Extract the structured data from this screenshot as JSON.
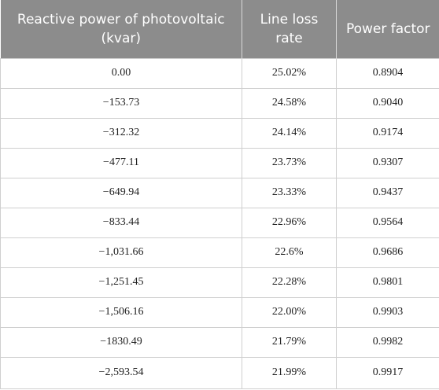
{
  "table": {
    "headers": [
      "Reactive power of photovoltaic (kvar)",
      "Line loss rate",
      "Power factor"
    ],
    "rows": [
      [
        "0.00",
        "25.02%",
        "0.8904"
      ],
      [
        "−153.73",
        "24.58%",
        "0.9040"
      ],
      [
        "−312.32",
        "24.14%",
        "0.9174"
      ],
      [
        "−477.11",
        "23.73%",
        "0.9307"
      ],
      [
        "−649.94",
        "23.33%",
        "0.9437"
      ],
      [
        "−833.44",
        "22.96%",
        "0.9564"
      ],
      [
        "−1,031.66",
        "22.6%",
        "0.9686"
      ],
      [
        "−1,251.45",
        "22.28%",
        "0.9801"
      ],
      [
        "−1,506.16",
        "22.00%",
        "0.9903"
      ],
      [
        "−1830.49",
        "21.79%",
        "0.9982"
      ],
      [
        "−2,593.54",
        "21.99%",
        "0.9917"
      ]
    ]
  }
}
